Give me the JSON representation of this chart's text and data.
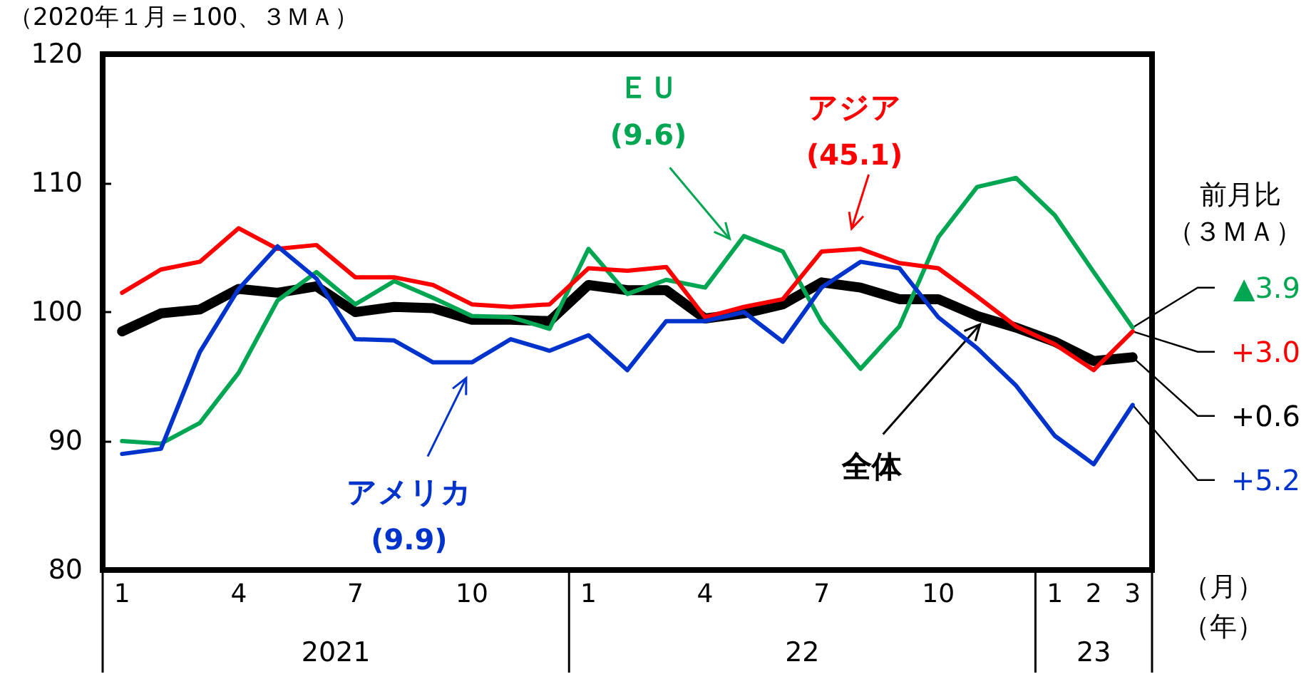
{
  "chart_data": {
    "type": "line",
    "ylabel": "（2020年１月＝100、３ＭＡ）",
    "xlabel": "（月）",
    "categories": [
      "1",
      null,
      null,
      "4",
      null,
      null,
      "7",
      null,
      null,
      "10",
      null,
      null,
      "1",
      null,
      null,
      "4",
      null,
      null,
      "7",
      null,
      null,
      "10",
      null,
      null,
      "1",
      "2",
      "3"
    ],
    "ylim": [
      80,
      120
    ],
    "yticks": [
      80,
      90,
      100,
      110,
      120
    ],
    "grid": false,
    "legend": false,
    "marker": "none",
    "line_style": "solid",
    "series": [
      {
        "name": "全体",
        "color": "#000000",
        "values": [
          98.5,
          99.9,
          100.2,
          101.8,
          101.5,
          102.0,
          100.0,
          100.4,
          100.3,
          99.4,
          99.4,
          99.3,
          102.1,
          101.7,
          101.7,
          99.5,
          99.9,
          100.6,
          102.3,
          101.9,
          101.0,
          101.0,
          99.7,
          98.8,
          97.7,
          96.2,
          96.5
        ]
      },
      {
        "name": "ＥＵ",
        "color": "#00a651",
        "values": [
          90.0,
          89.8,
          91.4,
          95.3,
          100.9,
          103.1,
          100.6,
          102.4,
          101.1,
          99.7,
          99.6,
          98.7,
          104.9,
          101.4,
          102.5,
          101.9,
          105.9,
          104.7,
          99.2,
          95.6,
          98.9,
          105.8,
          109.7,
          110.4,
          107.5,
          103.1,
          98.8
        ]
      },
      {
        "name": "アジア",
        "color": "#ff0000",
        "values": [
          101.5,
          103.3,
          103.9,
          106.5,
          104.9,
          105.2,
          102.7,
          102.7,
          102.1,
          100.6,
          100.4,
          100.6,
          103.4,
          103.2,
          103.5,
          99.6,
          100.4,
          101.0,
          104.7,
          104.9,
          103.8,
          103.4,
          101.2,
          98.9,
          97.5,
          95.5,
          98.5
        ]
      },
      {
        "name": "アメリカ",
        "color": "#0033cc",
        "values": [
          89.0,
          89.4,
          96.9,
          101.8,
          105.1,
          102.6,
          97.9,
          97.8,
          96.1,
          96.1,
          97.9,
          97.0,
          98.2,
          95.5,
          99.3,
          99.3,
          100.0,
          97.7,
          101.9,
          103.9,
          103.4,
          99.6,
          97.2,
          94.3,
          90.4,
          88.2,
          92.8
        ]
      }
    ],
    "annotations": [
      "(9.6)",
      "(45.1)",
      "(9.9)",
      "前月比",
      "（３ＭＡ）",
      "2021",
      "22",
      "23",
      "（年）",
      {
        "text": "+0.6",
        "x": "3",
        "y": 96.5
      },
      {
        "text": "▲3.9",
        "x": "3",
        "y": 98.8
      },
      {
        "text": "+3.0",
        "x": "3",
        "y": 98.5
      },
      {
        "text": "+5.2",
        "x": "3",
        "y": 92.8
      }
    ]
  }
}
